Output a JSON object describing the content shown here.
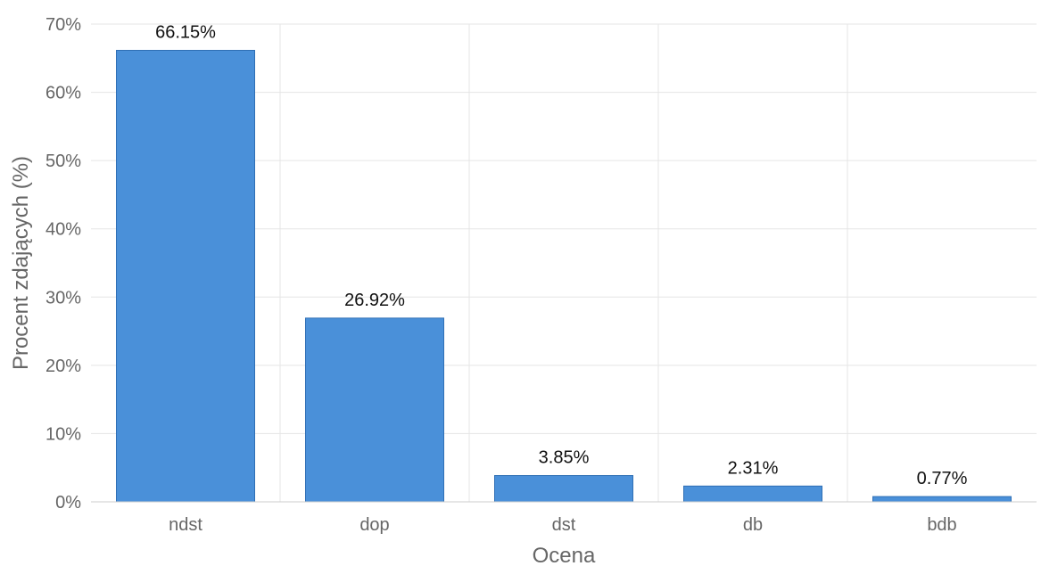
{
  "chart_data": {
    "type": "bar",
    "categories": [
      "ndst",
      "dop",
      "dst",
      "db",
      "bdb"
    ],
    "values": [
      66.15,
      26.92,
      3.85,
      2.31,
      0.77
    ],
    "data_labels": [
      "66.15%",
      "26.92%",
      "3.85%",
      "2.31%",
      "0.77%"
    ],
    "title": "",
    "xlabel": "Ocena",
    "ylabel": "Procent zdających (%)",
    "ylim": [
      0,
      70
    ],
    "yticks": [
      0,
      10,
      20,
      30,
      40,
      50,
      60,
      70
    ],
    "ytick_labels": [
      "0%",
      "10%",
      "20%",
      "30%",
      "40%",
      "50%",
      "60%",
      "70%"
    ],
    "grid": true,
    "legend": "none",
    "colors": {
      "bar": "#4a90d9",
      "bar_edge": "#2f6fb5"
    }
  }
}
